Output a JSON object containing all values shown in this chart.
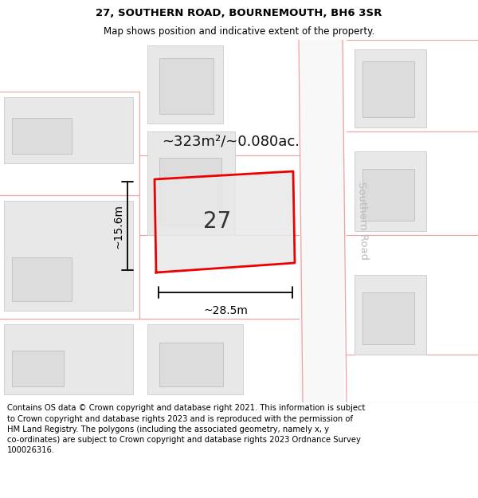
{
  "title_line1": "27, SOUTHERN ROAD, BOURNEMOUTH, BH6 3SR",
  "title_line2": "Map shows position and indicative extent of the property.",
  "footer_text": "Contains OS data © Crown copyright and database right 2021. This information is subject to Crown copyright and database rights 2023 and is reproduced with the permission of HM Land Registry. The polygons (including the associated geometry, namely x, y co-ordinates) are subject to Crown copyright and database rights 2023 Ordnance Survey 100026316.",
  "background_color": "#ffffff",
  "map_bg_color": "#f2f2f2",
  "road_fill": "#ffffff",
  "building_fill": "#e4e4e4",
  "building_edge": "#c8c8c8",
  "road_line_color": "#f0a0a0",
  "highlight_fill": "#e8e8e8",
  "highlight_edge": "#ee0000",
  "road_label": "Southern Road",
  "area_label": "~323m²/~0.080ac.",
  "plot_number": "27",
  "width_label": "~28.5m",
  "height_label": "~15.6m",
  "title_fontsize": 9.5,
  "subtitle_fontsize": 8.5,
  "footer_fontsize": 7.2
}
